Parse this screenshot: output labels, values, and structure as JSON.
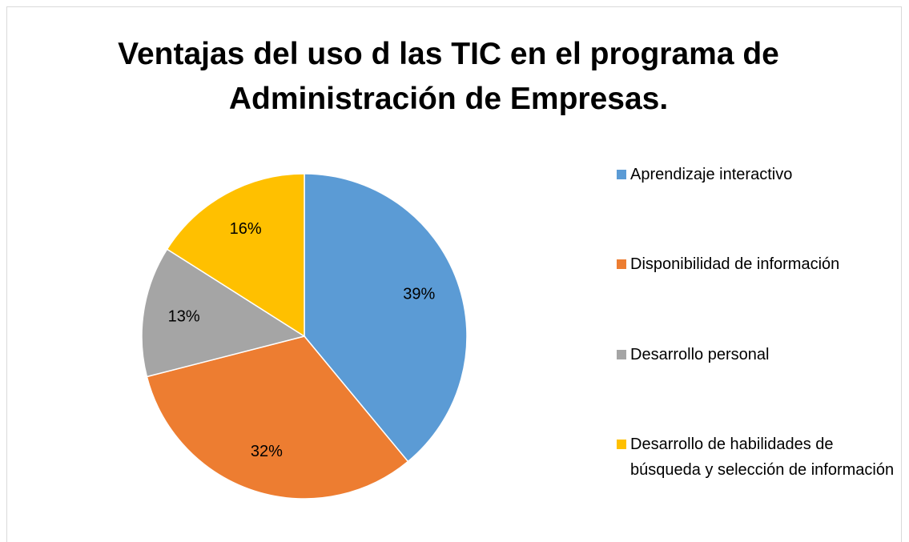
{
  "chart_data": {
    "type": "pie",
    "title": "Ventajas del uso d las TIC en el programa de Administración de Empresas.",
    "categories": [
      "Aprendizaje interactivo",
      "Disponibilidad de información",
      "Desarrollo personal",
      "Desarrollo de habilidades de búsqueda y selección de información"
    ],
    "values": [
      39,
      32,
      13,
      16
    ],
    "value_labels": [
      "39%",
      "32%",
      "13%",
      "16%"
    ],
    "colors": [
      "#5b9bd5",
      "#ed7d31",
      "#a5a5a5",
      "#ffc000"
    ],
    "legend": "right"
  }
}
